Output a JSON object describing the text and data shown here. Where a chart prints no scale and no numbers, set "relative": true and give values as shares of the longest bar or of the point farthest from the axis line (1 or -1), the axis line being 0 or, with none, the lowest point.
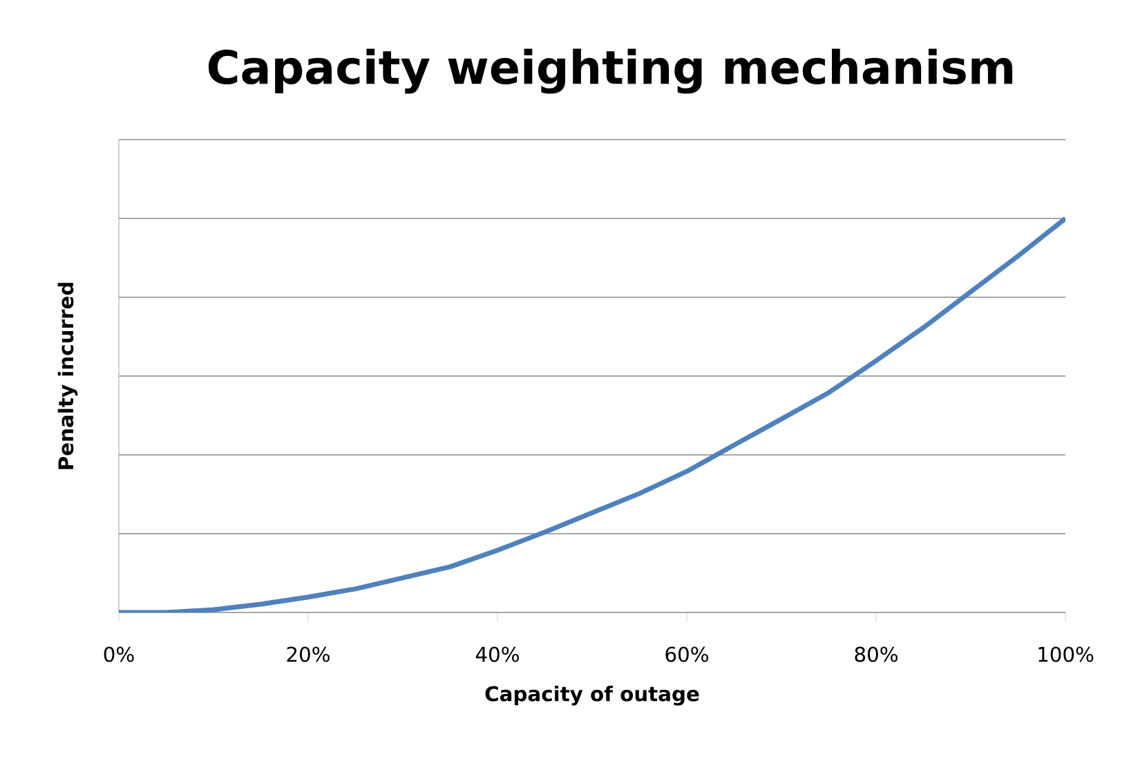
{
  "chart_data": {
    "type": "line",
    "title": "Capacity weighting mechanism",
    "xlabel": "Capacity of outage",
    "ylabel": "Penalty incurred",
    "x": [
      0,
      5,
      10,
      15,
      20,
      25,
      30,
      35,
      40,
      45,
      50,
      55,
      60,
      65,
      70,
      75,
      80,
      85,
      90,
      95,
      100
    ],
    "series": [
      {
        "color": "#4f81bd",
        "values": [
          0,
          0,
          0.007,
          0.021,
          0.039,
          0.06,
          0.088,
          0.116,
          0.158,
          0.204,
          0.253,
          0.302,
          0.358,
          0.425,
          0.491,
          0.558,
          0.639,
          0.723,
          0.814,
          0.905,
          1
        ]
      }
    ],
    "relative": true,
    "xlim": [
      0,
      100
    ],
    "xticks": [
      {
        "value": 0,
        "label": "0%"
      },
      {
        "value": 20,
        "label": "20%"
      },
      {
        "value": 40,
        "label": "40%"
      },
      {
        "value": 60,
        "label": "60%"
      },
      {
        "value": 80,
        "label": "80%"
      },
      {
        "value": 100,
        "label": "100%"
      }
    ],
    "grid": "y",
    "marker": "none",
    "line_style": "solid"
  }
}
